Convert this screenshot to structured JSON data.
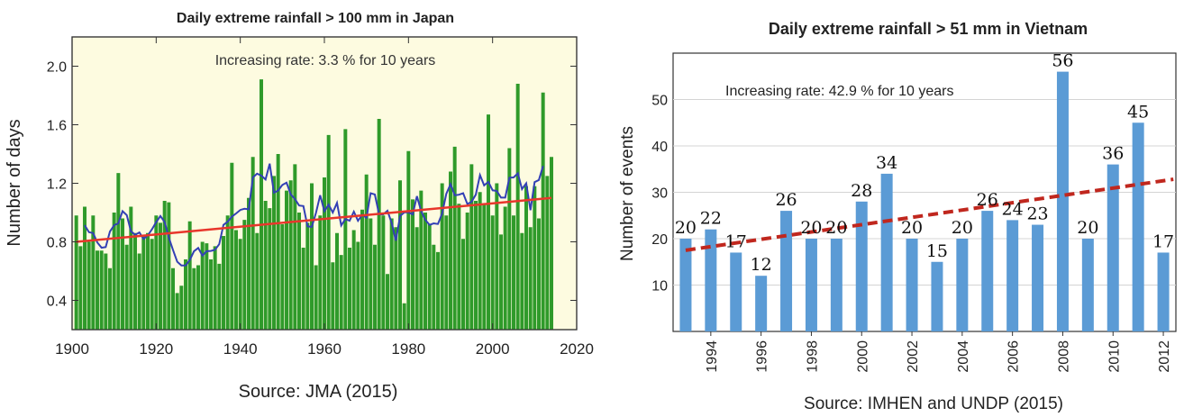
{
  "chart_data": [
    {
      "type": "bar",
      "title": "Daily extreme rainfall > 100 mm in Japan",
      "annotation": "Increasing rate: 3.3 % for 10 years",
      "ylabel": "Number of days",
      "xlabel": "",
      "source": "Source: JMA (2015)",
      "xlim": [
        1900,
        2020
      ],
      "ylim": [
        0.2,
        2.2
      ],
      "x_ticks": [
        "1900",
        "1920",
        "1940",
        "1960",
        "1980",
        "2000",
        "2020"
      ],
      "y_ticks": [
        "0.4",
        "0.8",
        "1.2",
        "1.6",
        "2.0"
      ],
      "grid": false,
      "background": "#fdfbe0",
      "bar_color": "#2f9a2a",
      "x": [
        1901,
        1902,
        1903,
        1904,
        1905,
        1906,
        1907,
        1908,
        1909,
        1910,
        1911,
        1912,
        1913,
        1914,
        1915,
        1916,
        1917,
        1918,
        1919,
        1920,
        1921,
        1922,
        1923,
        1924,
        1925,
        1926,
        1927,
        1928,
        1929,
        1930,
        1931,
        1932,
        1933,
        1934,
        1935,
        1936,
        1937,
        1938,
        1939,
        1940,
        1941,
        1942,
        1943,
        1944,
        1945,
        1946,
        1947,
        1948,
        1949,
        1950,
        1951,
        1952,
        1953,
        1954,
        1955,
        1956,
        1957,
        1958,
        1959,
        1960,
        1961,
        1962,
        1963,
        1964,
        1965,
        1966,
        1967,
        1968,
        1969,
        1970,
        1971,
        1972,
        1973,
        1974,
        1975,
        1976,
        1977,
        1978,
        1979,
        1980,
        1981,
        1982,
        1983,
        1984,
        1985,
        1986,
        1987,
        1988,
        1989,
        1990,
        1991,
        1992,
        1993,
        1994,
        1995,
        1996,
        1997,
        1998,
        1999,
        2000,
        2001,
        2002,
        2003,
        2004,
        2005,
        2006,
        2007,
        2008,
        2009,
        2010,
        2011,
        2012,
        2013,
        2014
      ],
      "values": [
        0.98,
        0.77,
        1.04,
        0.8,
        0.98,
        0.74,
        0.74,
        0.72,
        0.62,
        1.0,
        1.27,
        0.96,
        0.78,
        1.04,
        0.86,
        0.72,
        0.84,
        0.86,
        0.82,
        0.98,
        0.93,
        1.08,
        1.07,
        0.62,
        0.45,
        0.5,
        0.68,
        0.94,
        0.62,
        0.64,
        0.8,
        0.79,
        0.68,
        0.77,
        0.65,
        0.84,
        0.98,
        1.34,
        0.88,
        0.82,
        0.95,
        1.1,
        1.38,
        0.86,
        1.91,
        1.08,
        1.03,
        1.25,
        1.4,
        0.92,
        1.15,
        1.22,
        1.33,
        1.0,
        0.76,
        0.93,
        1.2,
        0.64,
        0.98,
        1.24,
        1.53,
        0.66,
        0.86,
        0.71,
        1.57,
        0.76,
        0.88,
        0.8,
        1.02,
        1.26,
        0.96,
        0.78,
        1.64,
        0.98,
        0.58,
        0.96,
        0.9,
        1.22,
        0.38,
        1.42,
        1.09,
        0.9,
        1.15,
        1.0,
        0.92,
        0.78,
        0.73,
        1.2,
        0.98,
        1.28,
        1.45,
        1.06,
        0.82,
        1.0,
        1.33,
        1.08,
        1.14,
        1.06,
        1.67,
        0.98,
        1.2,
        0.85,
        1.04,
        1.44,
        0.98,
        1.88,
        0.86,
        1.18,
        0.9,
        1.18,
        0.96,
        1.82,
        1.25,
        1.38
      ],
      "series": [
        {
          "name": "",
          "kind": "moving_average",
          "color": "#3340b5"
        },
        {
          "name": "",
          "kind": "linear_trend",
          "color": "#e8362b",
          "from": [
            1901,
            0.8
          ],
          "to": [
            2014,
            1.1
          ]
        }
      ]
    },
    {
      "type": "bar",
      "title": "Daily extreme rainfall > 51 mm in Vietnam",
      "annotation": "Increasing rate: 42.9 % for 10 years",
      "ylabel": "Number of events",
      "xlabel": "",
      "source": "Source: IMHEN and UNDP (2015)",
      "categories": [
        "1993",
        "1994",
        "1995",
        "1996",
        "1997",
        "1998",
        "1999",
        "2000",
        "2001",
        "2002",
        "2003",
        "2004",
        "2005",
        "2006",
        "2007",
        "2008",
        "2009",
        "2010",
        "2011",
        "2012"
      ],
      "values": [
        20,
        22,
        17,
        12,
        26,
        20,
        20,
        28,
        34,
        20,
        15,
        20,
        26,
        24,
        23,
        56,
        20,
        36,
        45,
        17
      ],
      "value_labels": [
        "20",
        "22",
        "17",
        "12",
        "26",
        "20",
        "20",
        "28",
        "34",
        "20",
        "15",
        "20",
        "26",
        "24",
        "23",
        "56",
        "20",
        "36",
        "45",
        "17"
      ],
      "x_ticks": [
        "1994",
        "1996",
        "1998",
        "2000",
        "2002",
        "2004",
        "2006",
        "2008",
        "2010",
        "2012"
      ],
      "y_ticks": [
        "10",
        "20",
        "30",
        "40",
        "50"
      ],
      "ylim": [
        0,
        60
      ],
      "grid": true,
      "bar_color": "#5b9bd5",
      "trend": {
        "color": "#c0271e",
        "style": "dashed",
        "from": [
          1993,
          17.5
        ],
        "to": [
          2012,
          32.5
        ]
      }
    }
  ]
}
